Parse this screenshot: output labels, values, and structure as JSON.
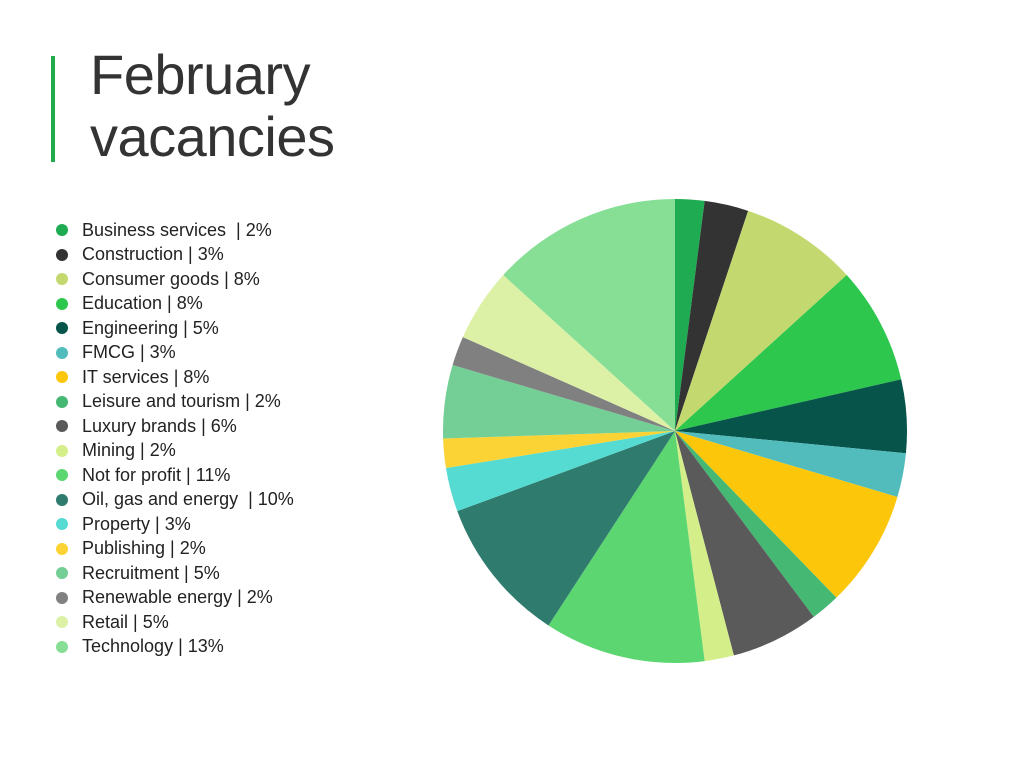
{
  "title": {
    "line1": "February",
    "line2": "vacancies"
  },
  "colors": {
    "accent": "#1faa4e",
    "title": "#333333"
  },
  "chart_data": {
    "type": "pie",
    "title": "February vacancies",
    "legend_position": "left",
    "slices": [
      {
        "label": "Business services  | 2%",
        "value": 2,
        "color": "#1fab52"
      },
      {
        "label": "Construction | 3%",
        "value": 3,
        "color": "#333333"
      },
      {
        "label": "Consumer goods | 8%",
        "value": 8,
        "color": "#c3d86f"
      },
      {
        "label": "Education | 8%",
        "value": 8,
        "color": "#2dc74d"
      },
      {
        "label": "Engineering | 5%",
        "value": 5,
        "color": "#07544a"
      },
      {
        "label": "FMCG | 3%",
        "value": 3,
        "color": "#52bcbc"
      },
      {
        "label": "IT services | 8%",
        "value": 8,
        "color": "#fcc70b"
      },
      {
        "label": "Leisure and tourism | 2%",
        "value": 2,
        "color": "#45b874"
      },
      {
        "label": "Luxury brands | 6%",
        "value": 6,
        "color": "#5a5a5a"
      },
      {
        "label": "Mining | 2%",
        "value": 2,
        "color": "#d4ee8a"
      },
      {
        "label": "Not for profit | 11%",
        "value": 11,
        "color": "#5cd671"
      },
      {
        "label": "Oil, gas and energy  | 10%",
        "value": 10,
        "color": "#2f7b6e"
      },
      {
        "label": "Property | 3%",
        "value": 3,
        "color": "#55dbd1"
      },
      {
        "label": "Publishing | 2%",
        "value": 2,
        "color": "#fcd334"
      },
      {
        "label": "Recruitment | 5%",
        "value": 5,
        "color": "#74cf97"
      },
      {
        "label": "Renewable energy | 2%",
        "value": 2,
        "color": "#808080"
      },
      {
        "label": "Retail | 5%",
        "value": 5,
        "color": "#dcf1a6"
      },
      {
        "label": "Technology | 13%",
        "value": 13,
        "color": "#86df94"
      }
    ]
  }
}
